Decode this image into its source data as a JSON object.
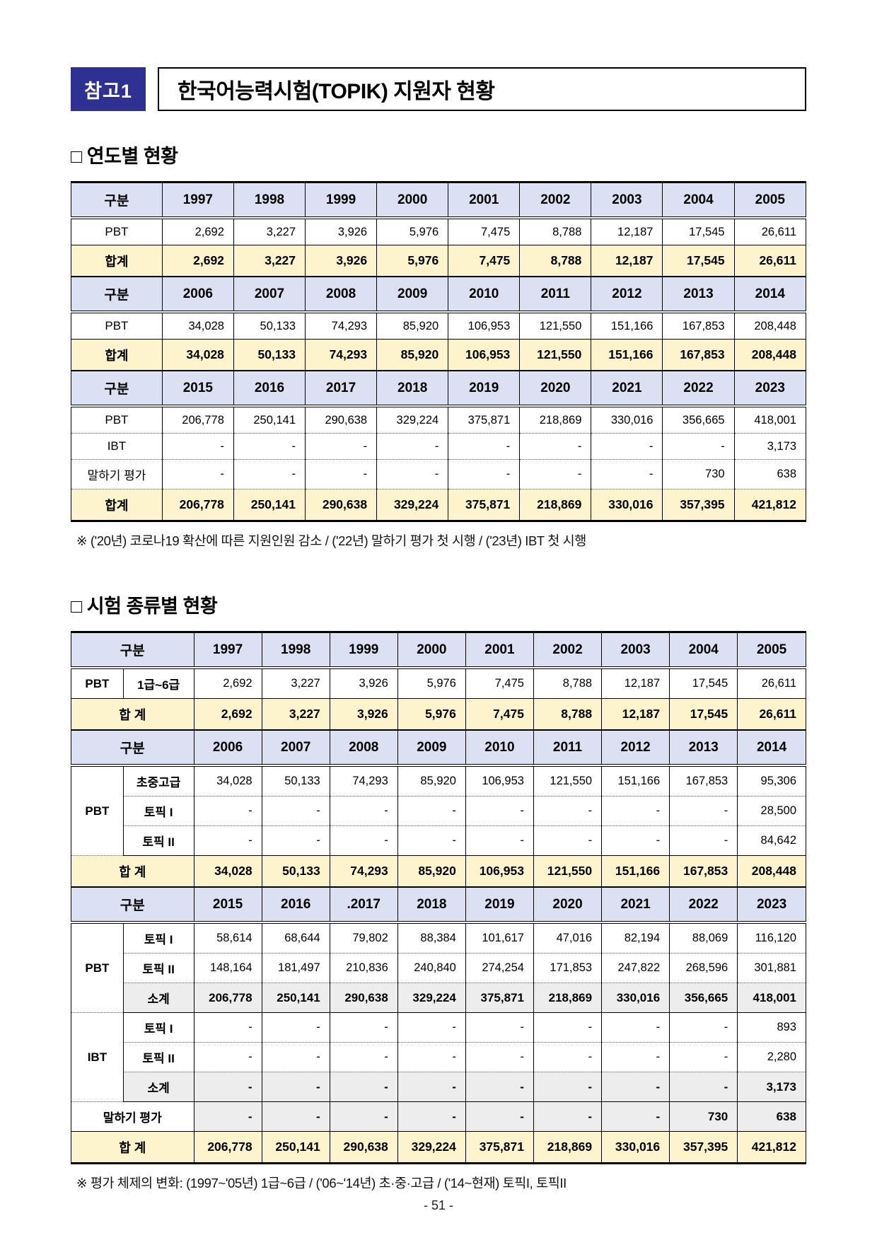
{
  "header": {
    "badge": "참고1",
    "title": "한국어능력시험(TOPIK) 지원자 현황"
  },
  "sections": {
    "yearly": {
      "heading": "□ 연도별 현황",
      "footnote": "※ ('20년) 코로나19 확산에 따른 지원인원 감소 / ('22년) 말하기 평가 첫 시행 / ('23년) IBT 첫 시행"
    },
    "by_type": {
      "heading": "□ 시험 종류별 현황",
      "footnote": "※ 평가 체제의 변화: (1997~'05년) 1급~6급 / ('06~'14년) 초·중·고급 / ('14~현재) 토픽I, 토픽II"
    }
  },
  "tables": {
    "yearly": {
      "rows": [
        {
          "kind": "head",
          "labels": [
            {
              "text": "구분"
            }
          ],
          "values": [
            "1997",
            "1998",
            "1999",
            "2000",
            "2001",
            "2002",
            "2003",
            "2004",
            "2005"
          ]
        },
        {
          "kind": "data",
          "labels": [
            {
              "text": "PBT"
            }
          ],
          "values": [
            "2,692",
            "3,227",
            "3,926",
            "5,976",
            "7,475",
            "8,788",
            "12,187",
            "17,545",
            "26,611"
          ]
        },
        {
          "kind": "total",
          "labels": [
            {
              "text": "합계"
            }
          ],
          "values": [
            "2,692",
            "3,227",
            "3,926",
            "5,976",
            "7,475",
            "8,788",
            "12,187",
            "17,545",
            "26,611"
          ]
        },
        {
          "kind": "head",
          "labels": [
            {
              "text": "구분"
            }
          ],
          "values": [
            "2006",
            "2007",
            "2008",
            "2009",
            "2010",
            "2011",
            "2012",
            "2013",
            "2014"
          ]
        },
        {
          "kind": "data",
          "labels": [
            {
              "text": "PBT"
            }
          ],
          "values": [
            "34,028",
            "50,133",
            "74,293",
            "85,920",
            "106,953",
            "121,550",
            "151,166",
            "167,853",
            "208,448"
          ]
        },
        {
          "kind": "total",
          "labels": [
            {
              "text": "합계"
            }
          ],
          "values": [
            "34,028",
            "50,133",
            "74,293",
            "85,920",
            "106,953",
            "121,550",
            "151,166",
            "167,853",
            "208,448"
          ]
        },
        {
          "kind": "head",
          "labels": [
            {
              "text": "구분"
            }
          ],
          "values": [
            "2015",
            "2016",
            "2017",
            "2018",
            "2019",
            "2020",
            "2021",
            "2022",
            "2023"
          ]
        },
        {
          "kind": "data",
          "sep": "dotted",
          "labels": [
            {
              "text": "PBT"
            }
          ],
          "values": [
            "206,778",
            "250,141",
            "290,638",
            "329,224",
            "375,871",
            "218,869",
            "330,016",
            "356,665",
            "418,001"
          ]
        },
        {
          "kind": "data",
          "sep": "dotted",
          "labels": [
            {
              "text": "IBT"
            }
          ],
          "values": [
            "-",
            "-",
            "-",
            "-",
            "-",
            "-",
            "-",
            "-",
            "3,173"
          ]
        },
        {
          "kind": "data",
          "sep": "dotted",
          "labels": [
            {
              "text": "말하기 평가"
            }
          ],
          "values": [
            "-",
            "-",
            "-",
            "-",
            "-",
            "-",
            "-",
            "730",
            "638"
          ]
        },
        {
          "kind": "total",
          "labels": [
            {
              "text": "합계"
            }
          ],
          "values": [
            "206,778",
            "250,141",
            "290,638",
            "329,224",
            "375,871",
            "218,869",
            "330,016",
            "357,395",
            "421,812"
          ]
        }
      ]
    },
    "by_type": {
      "rows": [
        {
          "kind": "head",
          "labels": [
            {
              "text": "구분",
              "colspan": 2
            }
          ],
          "values": [
            "1997",
            "1998",
            "1999",
            "2000",
            "2001",
            "2002",
            "2003",
            "2004",
            "2005"
          ]
        },
        {
          "kind": "data",
          "labels": [
            {
              "text": "PBT",
              "bold": true
            },
            {
              "text": "1급~6급",
              "bold": true
            }
          ],
          "values": [
            "2,692",
            "3,227",
            "3,926",
            "5,976",
            "7,475",
            "8,788",
            "12,187",
            "17,545",
            "26,611"
          ]
        },
        {
          "kind": "total",
          "labels": [
            {
              "text": "합 계",
              "colspan": 2
            }
          ],
          "values": [
            "2,692",
            "3,227",
            "3,926",
            "5,976",
            "7,475",
            "8,788",
            "12,187",
            "17,545",
            "26,611"
          ]
        },
        {
          "kind": "head",
          "labels": [
            {
              "text": "구분",
              "colspan": 2
            }
          ],
          "values": [
            "2006",
            "2007",
            "2008",
            "2009",
            "2010",
            "2011",
            "2012",
            "2013",
            "2014"
          ]
        },
        {
          "kind": "data",
          "sep": "dotted",
          "labels": [
            {
              "text": "PBT",
              "rowspan": 3,
              "bold": true
            },
            {
              "text": "초중고급",
              "bold": true
            }
          ],
          "values": [
            "34,028",
            "50,133",
            "74,293",
            "85,920",
            "106,953",
            "121,550",
            "151,166",
            "167,853",
            "95,306"
          ]
        },
        {
          "kind": "data",
          "sep": "dotted",
          "labels": [
            {
              "text": "토픽 I",
              "bold": true
            }
          ],
          "values": [
            "-",
            "-",
            "-",
            "-",
            "-",
            "-",
            "-",
            "-",
            "28,500"
          ]
        },
        {
          "kind": "data",
          "labels": [
            {
              "text": "토픽 II",
              "bold": true
            }
          ],
          "values": [
            "-",
            "-",
            "-",
            "-",
            "-",
            "-",
            "-",
            "-",
            "84,642"
          ]
        },
        {
          "kind": "total",
          "labels": [
            {
              "text": "합 계",
              "colspan": 2
            }
          ],
          "values": [
            "34,028",
            "50,133",
            "74,293",
            "85,920",
            "106,953",
            "121,550",
            "151,166",
            "167,853",
            "208,448"
          ]
        },
        {
          "kind": "head",
          "labels": [
            {
              "text": "구분",
              "colspan": 2
            }
          ],
          "values": [
            "2015",
            "2016",
            ".2017",
            "2018",
            "2019",
            "2020",
            "2021",
            "2022",
            "2023"
          ]
        },
        {
          "kind": "data",
          "sep": "dotted",
          "labels": [
            {
              "text": "PBT",
              "rowspan": 3,
              "bold": true
            },
            {
              "text": "토픽 I",
              "bold": true
            }
          ],
          "values": [
            "58,614",
            "68,644",
            "79,802",
            "88,384",
            "101,617",
            "47,016",
            "82,194",
            "88,069",
            "116,120"
          ]
        },
        {
          "kind": "data",
          "sep": "dotted",
          "labels": [
            {
              "text": "토픽 II",
              "bold": true
            }
          ],
          "values": [
            "148,164",
            "181,497",
            "210,836",
            "240,840",
            "274,254",
            "171,853",
            "247,822",
            "268,596",
            "301,881"
          ]
        },
        {
          "kind": "subtotal",
          "labels": [
            {
              "text": "소계"
            }
          ],
          "values": [
            "206,778",
            "250,141",
            "290,638",
            "329,224",
            "375,871",
            "218,869",
            "330,016",
            "356,665",
            "418,001"
          ]
        },
        {
          "kind": "data",
          "sep": "dotted",
          "labels": [
            {
              "text": "IBT",
              "rowspan": 3,
              "bold": true
            },
            {
              "text": "토픽 I",
              "bold": true
            }
          ],
          "values": [
            "-",
            "-",
            "-",
            "-",
            "-",
            "-",
            "-",
            "-",
            "893"
          ]
        },
        {
          "kind": "data",
          "sep": "dotted",
          "labels": [
            {
              "text": "토픽 II",
              "bold": true
            }
          ],
          "values": [
            "-",
            "-",
            "-",
            "-",
            "-",
            "-",
            "-",
            "-",
            "2,280"
          ]
        },
        {
          "kind": "subtotal",
          "labels": [
            {
              "text": "소계"
            }
          ],
          "values": [
            "-",
            "-",
            "-",
            "-",
            "-",
            "-",
            "-",
            "-",
            "3,173"
          ]
        },
        {
          "kind": "speaking",
          "labels": [
            {
              "text": "말하기 평가",
              "colspan": 2,
              "bold": true
            }
          ],
          "values": [
            "-",
            "-",
            "-",
            "-",
            "-",
            "-",
            "-",
            "730",
            "638"
          ]
        },
        {
          "kind": "total",
          "labels": [
            {
              "text": "합 계",
              "colspan": 2
            }
          ],
          "values": [
            "206,778",
            "250,141",
            "290,638",
            "329,224",
            "375,871",
            "218,869",
            "330,016",
            "357,395",
            "421,812"
          ]
        }
      ]
    }
  },
  "footer": {
    "page_number": "- 51 -"
  },
  "colors": {
    "badge_bg": "#2e3192",
    "header_row_bg": "#dbe0f2",
    "total_row_bg": "#fdf3cd",
    "subtotal_row_bg": "#ededed"
  }
}
